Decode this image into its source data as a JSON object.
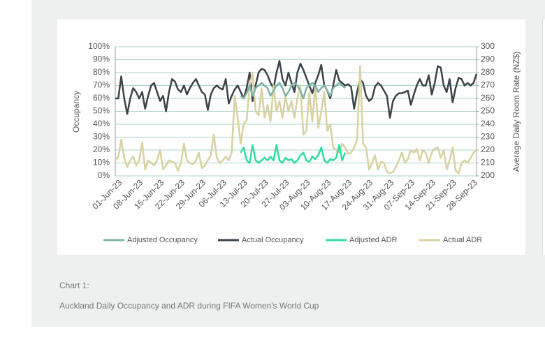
{
  "chart_data": {
    "type": "line",
    "y_label": "Occupancy",
    "y2_label": "Average Daily Room Rate (NZ$)",
    "categories": [
      "01-Jun-23",
      null,
      null,
      null,
      null,
      null,
      null,
      "08-Jun-23",
      null,
      null,
      null,
      null,
      null,
      null,
      "15-Jun-23",
      null,
      null,
      null,
      null,
      null,
      null,
      "22-Jun-23",
      null,
      null,
      null,
      null,
      null,
      null,
      "29-Jun-23",
      null,
      null,
      null,
      null,
      null,
      null,
      "06-Jul-23",
      null,
      null,
      null,
      null,
      null,
      null,
      "13-Jul-23",
      null,
      null,
      null,
      null,
      null,
      null,
      "20-Jul-23",
      null,
      null,
      null,
      null,
      null,
      null,
      "27-Jul-23",
      null,
      null,
      null,
      null,
      null,
      null,
      "03-Aug-23",
      null,
      null,
      null,
      null,
      null,
      null,
      "10-Aug-23",
      null,
      null,
      null,
      null,
      null,
      null,
      "17-Aug-23",
      null,
      null,
      null,
      null,
      null,
      null,
      "24-Aug-23",
      null,
      null,
      null,
      null,
      null,
      null,
      "31-Aug-23",
      null,
      null,
      null,
      null,
      null,
      null,
      "07-Sep-23",
      null,
      null,
      null,
      null,
      null,
      null,
      "14-Sep-23",
      null,
      null,
      null,
      null,
      null,
      null,
      "21-Sep-23",
      null,
      null,
      null,
      null,
      null,
      null,
      "28-Sep-23",
      null,
      null
    ],
    "series": [
      {
        "name": "Adjusted Occupancy",
        "color": "#7fb3a8",
        "axis": "y",
        "values": [
          null,
          null,
          null,
          null,
          null,
          null,
          null,
          null,
          null,
          null,
          null,
          null,
          null,
          null,
          null,
          null,
          null,
          null,
          null,
          null,
          null,
          null,
          null,
          null,
          null,
          null,
          null,
          null,
          null,
          null,
          null,
          null,
          null,
          null,
          null,
          null,
          null,
          null,
          null,
          null,
          null,
          null,
          62,
          60,
          64,
          70,
          62,
          68,
          70,
          72,
          70,
          68,
          62,
          66,
          70,
          72,
          68,
          62,
          65,
          70,
          72,
          70,
          66,
          60,
          68,
          70,
          72,
          70,
          65,
          68,
          70,
          66,
          62,
          68,
          70,
          72,
          70,
          68,
          null,
          null,
          null,
          null,
          null,
          null,
          null,
          null,
          null,
          null,
          null,
          null,
          null,
          null,
          null,
          null,
          null,
          null,
          null,
          null,
          null,
          null,
          null,
          null,
          null,
          null,
          null,
          null,
          null,
          null,
          null,
          null,
          null,
          null,
          null,
          null,
          null,
          null,
          null,
          null,
          null,
          null,
          null,
          null
        ]
      },
      {
        "name": "Actual Occupancy",
        "color": "#3b4349",
        "axis": "y",
        "values": [
          60,
          60,
          77,
          60,
          48,
          60,
          68,
          65,
          60,
          65,
          52,
          62,
          70,
          72,
          65,
          58,
          62,
          50,
          65,
          75,
          73,
          67,
          65,
          70,
          63,
          68,
          72,
          75,
          70,
          65,
          63,
          51,
          63,
          68,
          70,
          68,
          67,
          75,
          56,
          62,
          67,
          70,
          65,
          60,
          68,
          80,
          58,
          70,
          80,
          83,
          82,
          78,
          72,
          68,
          80,
          89,
          75,
          70,
          80,
          72,
          65,
          80,
          87,
          82,
          76,
          70,
          64,
          72,
          78,
          86,
          70,
          66,
          60,
          70,
          82,
          74,
          72,
          70,
          71,
          69,
          52,
          65,
          75,
          72,
          62,
          58,
          60,
          69,
          72,
          70,
          66,
          62,
          45,
          58,
          62,
          64,
          64,
          65,
          66,
          55,
          63,
          70,
          75,
          70,
          70,
          78,
          63,
          72,
          85,
          84,
          70,
          65,
          75,
          57,
          68,
          76,
          75,
          70,
          72,
          70,
          72,
          79
        ]
      },
      {
        "name": "Adjusted ADR",
        "color": "#2fdf9f",
        "axis": "y2",
        "values": [
          null,
          null,
          null,
          null,
          null,
          null,
          null,
          null,
          null,
          null,
          null,
          null,
          null,
          null,
          null,
          null,
          null,
          null,
          null,
          null,
          null,
          null,
          null,
          null,
          null,
          null,
          null,
          null,
          null,
          null,
          null,
          null,
          null,
          null,
          null,
          null,
          null,
          null,
          null,
          null,
          null,
          null,
          218,
          222,
          212,
          210,
          224,
          212,
          210,
          212,
          214,
          212,
          215,
          212,
          224,
          212,
          210,
          214,
          212,
          213,
          210,
          212,
          216,
          218,
          212,
          211,
          215,
          213,
          216,
          222,
          212,
          210,
          213,
          212,
          214,
          224,
          212,
          218,
          null,
          null,
          null,
          null,
          null,
          null,
          null,
          null,
          null,
          null,
          null,
          null,
          null,
          null,
          null,
          null,
          null,
          null,
          null,
          null,
          null,
          null,
          null,
          null,
          null,
          null,
          null,
          null,
          null,
          null,
          null,
          null,
          null,
          null,
          null,
          null,
          null,
          null,
          null,
          null,
          null,
          null,
          null,
          null
        ]
      },
      {
        "name": "Actual ADR",
        "color": "#d8d1a0",
        "axis": "y2",
        "values": [
          212,
          215,
          228,
          214,
          207,
          212,
          215,
          208,
          212,
          226,
          205,
          212,
          210,
          208,
          212,
          220,
          205,
          208,
          212,
          211,
          210,
          204,
          210,
          225,
          212,
          210,
          209,
          212,
          218,
          206,
          208,
          212,
          216,
          232,
          214,
          210,
          212,
          215,
          212,
          218,
          262,
          245,
          225,
          240,
          243,
          270,
          280,
          250,
          247,
          268,
          245,
          255,
          242,
          270,
          250,
          258,
          245,
          262,
          250,
          258,
          245,
          260,
          270,
          232,
          235,
          265,
          242,
          270,
          237,
          250,
          265,
          235,
          240,
          222,
          220,
          218,
          225,
          222,
          217,
          218,
          222,
          228,
          285,
          225,
          222,
          205,
          210,
          216,
          205,
          211,
          210,
          203,
          202,
          203,
          207,
          212,
          218,
          210,
          213,
          220,
          218,
          221,
          212,
          220,
          218,
          210,
          218,
          221,
          222,
          214,
          220,
          205,
          212,
          222,
          204,
          202,
          210,
          212,
          210,
          214,
          218,
          220
        ]
      }
    ],
    "ylim": [
      0,
      100
    ],
    "yticks": [
      {
        "value": 0,
        "label": "0%"
      },
      {
        "value": 10,
        "label": "10%"
      },
      {
        "value": 20,
        "label": "20%"
      },
      {
        "value": 30,
        "label": "30%"
      },
      {
        "value": 40,
        "label": "40%"
      },
      {
        "value": 50,
        "label": "50%"
      },
      {
        "value": 60,
        "label": "60%"
      },
      {
        "value": 70,
        "label": "70%"
      },
      {
        "value": 80,
        "label": "80%"
      },
      {
        "value": 90,
        "label": "90%"
      },
      {
        "value": 100,
        "label": "100%"
      }
    ],
    "y2lim": [
      200,
      300
    ],
    "y2ticks": [
      200,
      210,
      220,
      230,
      240,
      250,
      260,
      270,
      280,
      290,
      300
    ],
    "grid": true,
    "legend": "bottom"
  },
  "caption": {
    "label": "Chart 1:",
    "text": "Auckland Daily Occupancy and ADR during FIFA Women's World Cup"
  }
}
